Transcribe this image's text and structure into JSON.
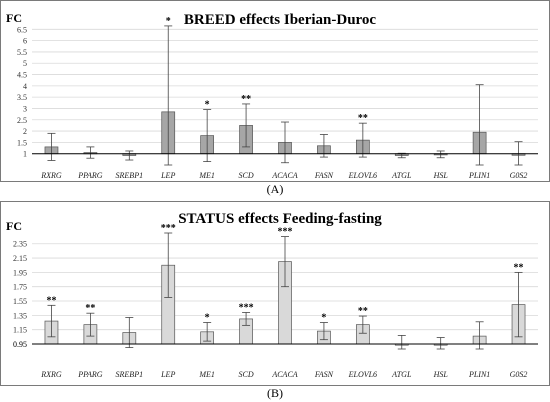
{
  "chart_data": [
    {
      "type": "bar",
      "title": "BREED effects Iberian-Duroc",
      "ylabel": "FC",
      "caption": "(A)",
      "baseline": 1,
      "ylim": [
        0.5,
        7.0
      ],
      "yticks": [
        "1.5",
        "2",
        "2.5",
        "3",
        "3.5",
        "4",
        "4.5",
        "5",
        "5.5",
        "6",
        "6.5"
      ],
      "bar_color": "#a6a6a6",
      "categories": [
        "RXRG",
        "PPARG",
        "SREBP1",
        "LEP",
        "ME1",
        "SCD",
        "ACACA",
        "FASN",
        "ELOVL6",
        "ATGL",
        "HSL",
        "PLIN1",
        "G0S2"
      ],
      "values": [
        1.3,
        1.05,
        0.92,
        2.85,
        1.8,
        2.25,
        1.5,
        1.35,
        1.6,
        0.92,
        0.97,
        1.95,
        0.93
      ],
      "errors": [
        0.6,
        0.25,
        0.2,
        3.8,
        1.15,
        0.95,
        0.9,
        0.5,
        0.75,
        0.1,
        0.15,
        2.1,
        0.6
      ],
      "significance": [
        "",
        "",
        "",
        "*",
        "*",
        "**",
        "",
        "",
        "**",
        "",
        "",
        "",
        ""
      ]
    },
    {
      "type": "bar",
      "title": "STATUS effects Feeding-fasting",
      "ylabel": "FC",
      "caption": "(B)",
      "baseline": 0.95,
      "ylim": [
        0.88,
        2.5
      ],
      "yticks": [
        "0.95",
        "1.15",
        "1.35",
        "1.55",
        "1.75",
        "1.95",
        "2.15",
        "2.35"
      ],
      "bar_color": "#d9d9d9",
      "categories": [
        "RXRG",
        "PPARG",
        "SREBP1",
        "LEP",
        "ME1",
        "SCD",
        "ACACA",
        "FASN",
        "ELOVL6",
        "ATGL",
        "HSL",
        "PLIN1",
        "G0S2"
      ],
      "values": [
        1.27,
        1.22,
        1.11,
        2.05,
        1.12,
        1.3,
        2.1,
        1.13,
        1.22,
        0.95,
        0.95,
        1.06,
        1.5
      ],
      "errors": [
        0.22,
        0.16,
        0.21,
        0.45,
        0.13,
        0.09,
        0.35,
        0.12,
        0.12,
        0.12,
        0.09,
        0.2,
        0.45
      ],
      "significance": [
        "**",
        "**",
        "",
        "***",
        "*",
        "***",
        "***",
        "*",
        "**",
        "",
        "",
        "",
        "**"
      ]
    }
  ]
}
